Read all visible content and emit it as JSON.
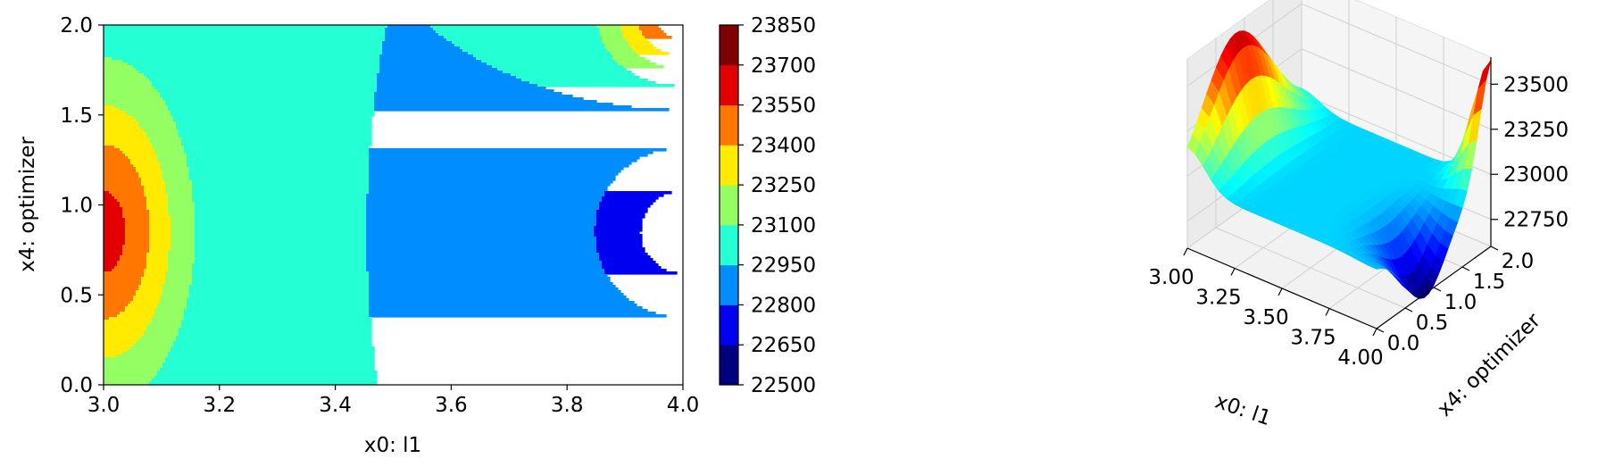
{
  "chart_data": [
    {
      "type": "contour",
      "title": "",
      "xlabel": "x0: l1",
      "ylabel": "x4: optimizer",
      "xlim": [
        3.0,
        4.0
      ],
      "ylim": [
        0.0,
        2.0
      ],
      "xticks": [
        "3.0",
        "3.2",
        "3.4",
        "3.6",
        "3.8",
        "4.0"
      ],
      "yticks": [
        "0.0",
        "0.5",
        "1.0",
        "1.5",
        "2.0"
      ],
      "colormap": "jet",
      "levels": [
        22500,
        22650,
        22800,
        22950,
        23100,
        23250,
        23400,
        23550,
        23700,
        23850
      ],
      "colorbar_ticks": [
        "22500",
        "22650",
        "22800",
        "22950",
        "23100",
        "23250",
        "23400",
        "23550",
        "23700",
        "23850"
      ],
      "level_colors": [
        "#00007f",
        "#0000f1",
        "#008dff",
        "#24ffd3",
        "#94ff62",
        "#ffea00",
        "#ff7700",
        "#e30000",
        "#7f0000"
      ],
      "features": [
        {
          "kind": "maximum",
          "x": 3.0,
          "y": 0.85,
          "value": 23600
        },
        {
          "kind": "maximum",
          "x": 4.0,
          "y": 2.0,
          "value": 23650
        },
        {
          "kind": "minimum",
          "x": 4.0,
          "y": 0.85,
          "value": 22600
        }
      ],
      "grid": false
    },
    {
      "type": "surface3d",
      "title": "",
      "xlabel": "x0: l1",
      "ylabel": "x4: optimizer",
      "xlim": [
        3.0,
        4.0
      ],
      "ylim": [
        0.0,
        2.0
      ],
      "zlim": [
        22600,
        23650
      ],
      "xticks": [
        "3.00",
        "3.25",
        "3.50",
        "3.75",
        "4.00"
      ],
      "yticks": [
        "0.0",
        "0.5",
        "1.0",
        "1.5",
        "2.0"
      ],
      "zticks": [
        "22750",
        "23000",
        "23250",
        "23500"
      ],
      "colormap": "jet",
      "grid": true
    }
  ]
}
